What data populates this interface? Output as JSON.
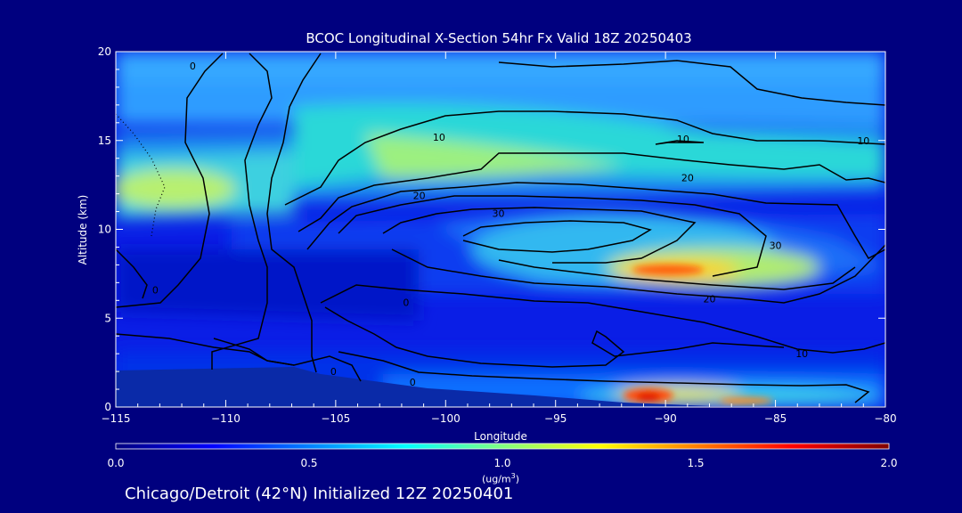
{
  "chart_data": {
    "type": "heatmap",
    "title": "BCOC Longitudinal X-Section 54hr  Fx Valid 18Z 20250403",
    "xlabel": "Longitude",
    "ylabel": "Altitude (km)",
    "xlim": [
      -115,
      -80
    ],
    "ylim": [
      0,
      20
    ],
    "x_ticks": [
      -115,
      -110,
      -105,
      -100,
      -95,
      -90,
      -85,
      -80
    ],
    "y_ticks": [
      0,
      5,
      10,
      15,
      20
    ],
    "colorbar": {
      "range": [
        0.0,
        2.0
      ],
      "ticks": [
        "0.0",
        "0.5",
        "1.0",
        "1.5",
        "2.0"
      ],
      "units_main": "(ug/m",
      "units_exp": "3",
      "units_end": ")",
      "colors": [
        "#00007f",
        "#0000ff",
        "#0080ff",
        "#00ffff",
        "#80ff80",
        "#ffff00",
        "#ff8000",
        "#ff0000",
        "#7f0000"
      ]
    },
    "contour_labels": [
      {
        "text": "0",
        "lon": -111.5,
        "alt": 19.2
      },
      {
        "text": "10",
        "lon": -100.3,
        "alt": 15.2
      },
      {
        "text": "10",
        "lon": -89.2,
        "alt": 15.1
      },
      {
        "text": "10",
        "lon": -81.0,
        "alt": 15.0
      },
      {
        "text": "20",
        "lon": -101.2,
        "alt": 11.9
      },
      {
        "text": "20",
        "lon": -89.0,
        "alt": 12.9
      },
      {
        "text": "30",
        "lon": -97.6,
        "alt": 10.9
      },
      {
        "text": "30",
        "lon": -85.0,
        "alt": 9.1
      },
      {
        "text": "0",
        "lon": -113.2,
        "alt": 6.6
      },
      {
        "text": "0",
        "lon": -101.8,
        "alt": 5.9
      },
      {
        "text": "20",
        "lon": -88.0,
        "alt": 6.1
      },
      {
        "text": "10",
        "lon": -83.8,
        "alt": 3.0
      },
      {
        "text": "0",
        "lon": -105.1,
        "alt": 2.0
      },
      {
        "text": "0",
        "lon": -101.5,
        "alt": 1.4
      }
    ]
  },
  "footer": {
    "caption": "Chicago/Detroit (42°N) Initialized 12Z 20250401"
  }
}
